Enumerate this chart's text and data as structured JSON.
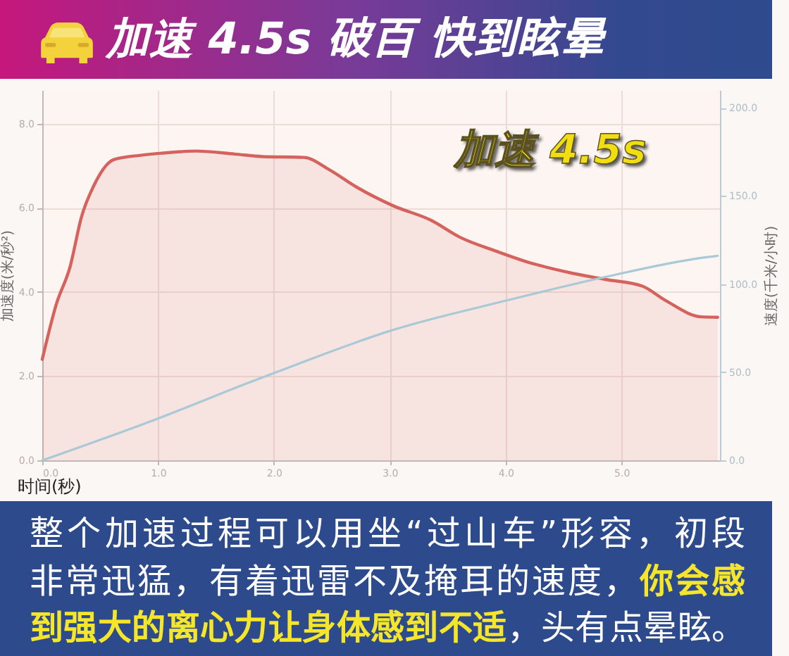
{
  "chart_data": {
    "type": "area",
    "title": "加速 4.5s 破百 快到眩晕",
    "xlabel": "时间(秒)",
    "ylabel": "加速度(米/秒²)",
    "y2label": "速度(千米/小时)",
    "xlim": [
      0,
      5.85
    ],
    "xticks": [
      {
        "value": 0,
        "label": "0.0"
      },
      {
        "value": 1,
        "label": "1.0"
      },
      {
        "value": 2,
        "label": "2.0"
      },
      {
        "value": 3,
        "label": "3.0"
      },
      {
        "value": 4,
        "label": "4.0"
      },
      {
        "value": 5,
        "label": "5.0"
      }
    ],
    "ylim": [
      0,
      8.8
    ],
    "yticks": [
      {
        "value": 0,
        "label": "0.0"
      },
      {
        "value": 2,
        "label": "2.0"
      },
      {
        "value": 4,
        "label": "4.0"
      },
      {
        "value": 6,
        "label": "6.0"
      },
      {
        "value": 8,
        "label": "8.0"
      }
    ],
    "y2lim": [
      0,
      210
    ],
    "y2ticks": [
      {
        "value": 0,
        "label": "0.0"
      },
      {
        "value": 50,
        "label": "50.0"
      },
      {
        "value": 100,
        "label": "100.0"
      },
      {
        "value": 150,
        "label": "150.0"
      },
      {
        "value": 200,
        "label": "200.0"
      }
    ],
    "series": [
      {
        "color": "#d5625d",
        "x": [
          0,
          0.12,
          0.24,
          0.34,
          0.44,
          0.62,
          0.85,
          1.03,
          1.33,
          1.66,
          1.9,
          2.26,
          2.47,
          2.71,
          3.03,
          3.36,
          3.6,
          3.92,
          4.17,
          4.57,
          4.86,
          5.18,
          5.38,
          5.69,
          5.83
        ],
        "values": [
          2.4,
          3.7,
          4.6,
          5.8,
          6.5,
          7.15,
          7.25,
          7.3,
          7.35,
          7.28,
          7.22,
          7.2,
          6.92,
          6.5,
          6.05,
          5.7,
          5.31,
          4.97,
          4.73,
          4.45,
          4.3,
          4.14,
          3.8,
          3.41,
          3.4
        ]
      },
      {
        "type": "line",
        "axis": "y2",
        "color": "#a9c9d6",
        "x": [
          0,
          1.01,
          1.82,
          2.02,
          3.03,
          4.03,
          4.86,
          5.71,
          5.83
        ],
        "values": [
          0,
          24,
          45,
          50,
          74,
          91,
          104,
          115,
          116
        ]
      }
    ],
    "grid": true,
    "annotations": [
      "加速 4.5s",
      "整个加速过程可以用坐“过山车”形容，初段",
      "非常迅猛，有着迅雷不及掩耳的速度，",
      "你会感",
      "到强大的离心力让身体感到不适",
      "，头有点晕眩。"
    ]
  }
}
